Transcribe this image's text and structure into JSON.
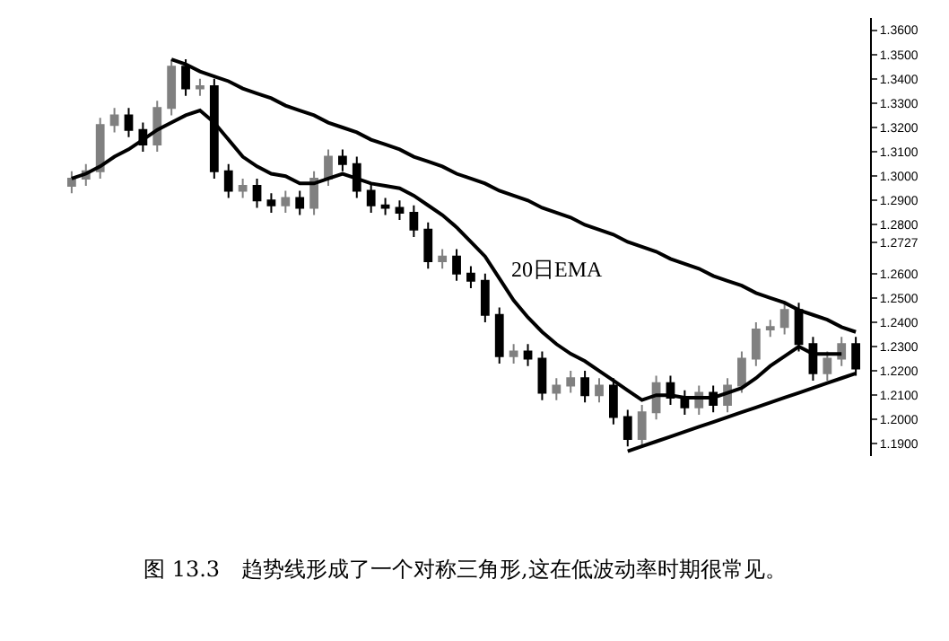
{
  "chart_data": {
    "type": "candlestick",
    "title": "图 13.3　趋势线形成了一个对称三角形,这在低波动率时期很常见。",
    "categories": [
      null,
      null,
      null,
      null,
      null,
      null,
      null,
      null,
      null,
      null,
      null,
      null,
      null,
      null,
      null,
      null,
      null,
      null,
      null,
      null,
      null,
      null,
      null,
      null,
      null,
      null,
      null,
      null,
      null,
      null,
      null,
      null,
      null,
      null,
      null,
      null,
      null,
      null,
      null,
      null,
      null,
      null,
      null,
      null,
      null,
      null,
      null,
      null,
      null,
      null,
      null,
      null,
      null,
      null,
      null,
      null
    ],
    "ohlc": [
      [
        1.296,
        1.302,
        1.293,
        1.299
      ],
      [
        1.299,
        1.305,
        1.296,
        1.302
      ],
      [
        1.302,
        1.324,
        1.299,
        1.321
      ],
      [
        1.321,
        1.328,
        1.318,
        1.325
      ],
      [
        1.325,
        1.328,
        1.316,
        1.319
      ],
      [
        1.319,
        1.322,
        1.31,
        1.313
      ],
      [
        1.313,
        1.331,
        1.31,
        1.328
      ],
      [
        1.328,
        1.348,
        1.325,
        1.345
      ],
      [
        1.345,
        1.348,
        1.333,
        1.336
      ],
      [
        1.336,
        1.34,
        1.333,
        1.337
      ],
      [
        1.337,
        1.34,
        1.299,
        1.302
      ],
      [
        1.302,
        1.305,
        1.291,
        1.294
      ],
      [
        1.294,
        1.299,
        1.291,
        1.296
      ],
      [
        1.296,
        1.299,
        1.287,
        1.29
      ],
      [
        1.29,
        1.293,
        1.285,
        1.288
      ],
      [
        1.288,
        1.294,
        1.285,
        1.291
      ],
      [
        1.291,
        1.294,
        1.284,
        1.287
      ],
      [
        1.287,
        1.302,
        1.284,
        1.299
      ],
      [
        1.299,
        1.311,
        1.296,
        1.308
      ],
      [
        1.308,
        1.311,
        1.302,
        1.305
      ],
      [
        1.305,
        1.308,
        1.291,
        1.294
      ],
      [
        1.294,
        1.297,
        1.285,
        1.288
      ],
      [
        1.288,
        1.291,
        1.284,
        1.287
      ],
      [
        1.287,
        1.29,
        1.282,
        1.285
      ],
      [
        1.285,
        1.288,
        1.275,
        1.278
      ],
      [
        1.278,
        1.281,
        1.262,
        1.265
      ],
      [
        1.265,
        1.27,
        1.262,
        1.267
      ],
      [
        1.267,
        1.27,
        1.257,
        1.26
      ],
      [
        1.26,
        1.263,
        1.254,
        1.257
      ],
      [
        1.257,
        1.26,
        1.24,
        1.243
      ],
      [
        1.243,
        1.246,
        1.223,
        1.226
      ],
      [
        1.226,
        1.231,
        1.223,
        1.228
      ],
      [
        1.228,
        1.231,
        1.222,
        1.225
      ],
      [
        1.225,
        1.228,
        1.208,
        1.211
      ],
      [
        1.211,
        1.217,
        1.208,
        1.214
      ],
      [
        1.214,
        1.22,
        1.211,
        1.217
      ],
      [
        1.217,
        1.22,
        1.207,
        1.21
      ],
      [
        1.21,
        1.217,
        1.207,
        1.214
      ],
      [
        1.214,
        1.217,
        1.198,
        1.201
      ],
      [
        1.201,
        1.204,
        1.189,
        1.192
      ],
      [
        1.192,
        1.206,
        1.189,
        1.203
      ],
      [
        1.203,
        1.218,
        1.2,
        1.215
      ],
      [
        1.215,
        1.218,
        1.206,
        1.209
      ],
      [
        1.209,
        1.212,
        1.202,
        1.205
      ],
      [
        1.205,
        1.214,
        1.202,
        1.211
      ],
      [
        1.211,
        1.214,
        1.203,
        1.206
      ],
      [
        1.206,
        1.217,
        1.203,
        1.214
      ],
      [
        1.214,
        1.228,
        1.211,
        1.225
      ],
      [
        1.225,
        1.24,
        1.222,
        1.237
      ],
      [
        1.237,
        1.241,
        1.234,
        1.238
      ],
      [
        1.238,
        1.248,
        1.235,
        1.245
      ],
      [
        1.245,
        1.248,
        1.228,
        1.231
      ],
      [
        1.231,
        1.234,
        1.216,
        1.219
      ],
      [
        1.219,
        1.228,
        1.216,
        1.225
      ],
      [
        1.225,
        1.234,
        1.222,
        1.231
      ],
      [
        1.231,
        1.234,
        1.218,
        1.221
      ]
    ],
    "series": [
      {
        "type": "line",
        "color": "#000000",
        "values": [
          1.299,
          1.301,
          1.304,
          1.308,
          1.311,
          1.315,
          1.319,
          1.322,
          1.325,
          1.327,
          1.322,
          1.315,
          1.308,
          1.304,
          1.301,
          1.3,
          1.297,
          1.297,
          1.299,
          1.301,
          1.299,
          1.297,
          1.296,
          1.295,
          1.292,
          1.288,
          1.284,
          1.279,
          1.273,
          1.267,
          1.258,
          1.249,
          1.242,
          1.236,
          1.231,
          1.227,
          1.224,
          1.22,
          1.216,
          1.212,
          1.208,
          1.21,
          1.21,
          1.209,
          1.209,
          1.209,
          1.211,
          1.213,
          1.217,
          1.222,
          1.226,
          1.23,
          1.227,
          1.227,
          1.227,
          null
        ]
      },
      {
        "type": "line",
        "color": "#000000",
        "values": [
          null,
          null,
          null,
          null,
          null,
          null,
          null,
          1.348,
          1.346,
          1.343,
          1.341,
          1.339,
          1.336,
          1.334,
          1.332,
          1.329,
          1.327,
          1.325,
          1.322,
          1.32,
          1.318,
          1.315,
          1.313,
          1.311,
          1.308,
          1.306,
          1.304,
          1.301,
          1.299,
          1.297,
          1.294,
          1.292,
          1.29,
          1.287,
          1.285,
          1.283,
          1.28,
          1.278,
          1.276,
          1.273,
          1.271,
          1.269,
          1.266,
          1.264,
          1.262,
          1.259,
          1.257,
          1.255,
          1.252,
          1.25,
          1.248,
          1.245,
          1.243,
          1.241,
          1.238,
          1.236
        ]
      },
      {
        "type": "line",
        "color": "#000000",
        "values": [
          null,
          null,
          null,
          null,
          null,
          null,
          null,
          null,
          null,
          null,
          null,
          null,
          null,
          null,
          null,
          null,
          null,
          null,
          null,
          null,
          null,
          null,
          null,
          null,
          null,
          null,
          null,
          null,
          null,
          null,
          null,
          null,
          null,
          null,
          null,
          null,
          null,
          null,
          null,
          1.187,
          1.189,
          1.191,
          1.193,
          1.195,
          1.197,
          1.199,
          1.201,
          1.203,
          1.205,
          1.207,
          1.209,
          1.211,
          1.213,
          1.215,
          1.217,
          1.219
        ]
      }
    ],
    "annotations": [
      "20日EMA"
    ],
    "ylim": [
      1.185,
      1.365
    ],
    "yticks": [
      {
        "value": 1.19,
        "label": "1.1900"
      },
      {
        "value": 1.2,
        "label": "1.2000"
      },
      {
        "value": 1.21,
        "label": "1.2100"
      },
      {
        "value": 1.22,
        "label": "1.2200"
      },
      {
        "value": 1.23,
        "label": "1.2300"
      },
      {
        "value": 1.24,
        "label": "1.2400"
      },
      {
        "value": 1.25,
        "label": "1.2500"
      },
      {
        "value": 1.26,
        "label": "1.2600"
      },
      {
        "value": 1.2727,
        "label": "1.2727"
      },
      {
        "value": 1.28,
        "label": "1.2800"
      },
      {
        "value": 1.29,
        "label": "1.2900"
      },
      {
        "value": 1.3,
        "label": "1.3000"
      },
      {
        "value": 1.31,
        "label": "1.3100"
      },
      {
        "value": 1.32,
        "label": "1.3200"
      },
      {
        "value": 1.33,
        "label": "1.3300"
      },
      {
        "value": 1.34,
        "label": "1.3400"
      },
      {
        "value": 1.35,
        "label": "1.3500"
      },
      {
        "value": 1.36,
        "label": "1.3600"
      }
    ],
    "tick_labels": "y"
  }
}
